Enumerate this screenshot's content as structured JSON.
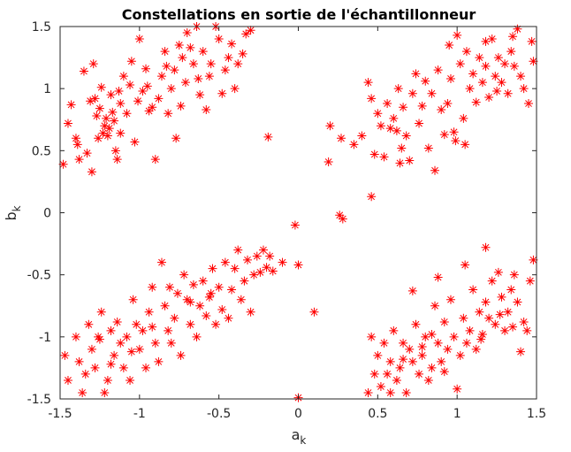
{
  "chart_data": {
    "type": "scatter",
    "title": "Constellations en sortie de l'échantillonneur",
    "xlabel": {
      "base": "a",
      "sub": "k"
    },
    "ylabel": {
      "base": "b",
      "sub": "k"
    },
    "xlim": [
      -1.5,
      1.5
    ],
    "ylim": [
      -1.5,
      1.5
    ],
    "xticks": [
      -1.5,
      -1,
      -0.5,
      0,
      0.5,
      1,
      1.5
    ],
    "xtick_labels": [
      "-1.5",
      "-1",
      "-0.5",
      "0",
      "0.5",
      "1",
      "1.5"
    ],
    "yticks": [
      -1.5,
      -1,
      -0.5,
      0,
      0.5,
      1,
      1.5
    ],
    "ytick_labels": [
      "-1.5",
      "-1",
      "-0.5",
      "0",
      "0.5",
      "1",
      "1.5"
    ],
    "grid": false,
    "marker": "asterisk",
    "marker_color": "#ff0000",
    "points": [
      [
        -1.48,
        0.39
      ],
      [
        -1.45,
        0.72
      ],
      [
        -1.43,
        0.87
      ],
      [
        -1.4,
        0.6
      ],
      [
        -1.39,
        0.55
      ],
      [
        -1.38,
        0.43
      ],
      [
        -1.35,
        1.14
      ],
      [
        -1.33,
        0.48
      ],
      [
        -1.31,
        0.9
      ],
      [
        -1.3,
        0.33
      ],
      [
        -1.29,
        1.2
      ],
      [
        -1.28,
        0.92
      ],
      [
        -1.27,
        0.78
      ],
      [
        -1.26,
        0.6
      ],
      [
        -1.25,
        0.84
      ],
      [
        -1.24,
        1.01
      ],
      [
        -1.23,
        0.64
      ],
      [
        -1.22,
        0.7
      ],
      [
        -1.21,
        0.76
      ],
      [
        -1.2,
        0.62
      ],
      [
        -1.19,
        0.68
      ],
      [
        -1.18,
        0.95
      ],
      [
        -1.17,
        0.81
      ],
      [
        -1.16,
        0.74
      ],
      [
        -1.15,
        0.5
      ],
      [
        -1.14,
        0.43
      ],
      [
        -1.13,
        0.98
      ],
      [
        -1.12,
        0.64
      ],
      [
        -1.1,
        1.1
      ],
      [
        -1.08,
        0.8
      ],
      [
        -1.06,
        1.03
      ],
      [
        -1.05,
        1.22
      ],
      [
        -1.03,
        0.57
      ],
      [
        -1.01,
        0.9
      ],
      [
        -1.0,
        1.4
      ],
      [
        -0.98,
        0.98
      ],
      [
        -0.96,
        1.16
      ],
      [
        -0.94,
        0.82
      ],
      [
        -0.92,
        0.85
      ],
      [
        -0.9,
        0.43
      ],
      [
        -0.88,
        0.92
      ],
      [
        -0.86,
        1.1
      ],
      [
        -0.84,
        1.3
      ],
      [
        -0.82,
        0.8
      ],
      [
        -0.8,
        1.0
      ],
      [
        -0.78,
        1.15
      ],
      [
        -0.77,
        0.6
      ],
      [
        -0.75,
        1.35
      ],
      [
        -0.73,
        1.25
      ],
      [
        -0.71,
        1.05
      ],
      [
        -0.7,
        1.45
      ],
      [
        -0.68,
        1.33
      ],
      [
        -0.66,
        1.2
      ],
      [
        -0.64,
        1.5
      ],
      [
        -0.62,
        0.95
      ],
      [
        -0.6,
        1.3
      ],
      [
        -0.58,
        0.83
      ],
      [
        -0.56,
        1.1
      ],
      [
        -0.55,
        1.2
      ],
      [
        -0.52,
        1.5
      ],
      [
        -0.5,
        1.4
      ],
      [
        -0.48,
        0.96
      ],
      [
        -0.46,
        1.15
      ],
      [
        -0.44,
        1.25
      ],
      [
        -0.42,
        1.36
      ],
      [
        -0.4,
        1.0
      ],
      [
        -0.38,
        1.2
      ],
      [
        -0.35,
        1.28
      ],
      [
        -0.33,
        1.44
      ],
      [
        -0.3,
        1.47
      ],
      [
        -1.12,
        0.88
      ],
      [
        -0.95,
        1.02
      ],
      [
        -0.83,
        1.18
      ],
      [
        -0.74,
        0.86
      ],
      [
        -0.63,
        1.08
      ],
      [
        0.2,
        0.7
      ],
      [
        0.27,
        0.6
      ],
      [
        0.35,
        0.55
      ],
      [
        0.4,
        0.62
      ],
      [
        0.44,
        1.05
      ],
      [
        0.46,
        0.92
      ],
      [
        0.48,
        0.47
      ],
      [
        0.5,
        0.8
      ],
      [
        0.52,
        0.7
      ],
      [
        0.54,
        0.45
      ],
      [
        0.56,
        0.88
      ],
      [
        0.58,
        0.68
      ],
      [
        0.6,
        0.76
      ],
      [
        0.62,
        0.66
      ],
      [
        0.63,
        1.0
      ],
      [
        0.64,
        0.4
      ],
      [
        0.65,
        0.52
      ],
      [
        0.66,
        0.85
      ],
      [
        0.68,
        0.62
      ],
      [
        0.7,
        0.42
      ],
      [
        0.72,
        0.96
      ],
      [
        0.74,
        1.12
      ],
      [
        0.76,
        0.72
      ],
      [
        0.78,
        0.86
      ],
      [
        0.8,
        1.06
      ],
      [
        0.82,
        0.52
      ],
      [
        0.84,
        0.96
      ],
      [
        0.86,
        0.34
      ],
      [
        0.88,
        1.15
      ],
      [
        0.9,
        0.83
      ],
      [
        0.92,
        0.63
      ],
      [
        0.94,
        0.88
      ],
      [
        0.96,
        1.08
      ],
      [
        0.98,
        0.65
      ],
      [
        1.0,
        1.43
      ],
      [
        1.02,
        1.2
      ],
      [
        1.04,
        0.76
      ],
      [
        1.06,
        1.3
      ],
      [
        1.08,
        1.0
      ],
      [
        1.1,
        1.12
      ],
      [
        1.12,
        0.89
      ],
      [
        1.14,
        1.25
      ],
      [
        1.16,
        1.05
      ],
      [
        1.18,
        1.18
      ],
      [
        1.2,
        0.93
      ],
      [
        1.22,
        1.4
      ],
      [
        1.24,
        1.1
      ],
      [
        1.26,
        1.25
      ],
      [
        1.28,
        1.05
      ],
      [
        1.3,
        1.2
      ],
      [
        1.32,
        0.96
      ],
      [
        1.34,
        1.3
      ],
      [
        1.36,
        1.18
      ],
      [
        1.38,
        1.48
      ],
      [
        1.4,
        1.1
      ],
      [
        1.42,
        1.0
      ],
      [
        1.45,
        0.88
      ],
      [
        1.47,
        1.38
      ],
      [
        1.48,
        1.22
      ],
      [
        0.99,
        0.58
      ],
      [
        1.05,
        0.55
      ],
      [
        1.25,
        0.98
      ],
      [
        1.18,
        1.38
      ],
      [
        0.95,
        1.35
      ],
      [
        1.35,
        1.42
      ],
      [
        -1.47,
        -1.15
      ],
      [
        -1.45,
        -1.35
      ],
      [
        -1.4,
        -1.0
      ],
      [
        -1.38,
        -1.2
      ],
      [
        -1.36,
        -1.45
      ],
      [
        -1.34,
        -1.3
      ],
      [
        -1.32,
        -0.9
      ],
      [
        -1.3,
        -1.1
      ],
      [
        -1.28,
        -1.25
      ],
      [
        -1.26,
        -1.0
      ],
      [
        -1.24,
        -0.8
      ],
      [
        -1.22,
        -1.45
      ],
      [
        -1.2,
        -1.35
      ],
      [
        -1.18,
        -0.95
      ],
      [
        -1.16,
        -1.15
      ],
      [
        -1.14,
        -0.88
      ],
      [
        -1.12,
        -1.05
      ],
      [
        -1.1,
        -1.25
      ],
      [
        -1.08,
        -1.0
      ],
      [
        -1.06,
        -1.35
      ],
      [
        -1.04,
        -0.7
      ],
      [
        -1.02,
        -0.9
      ],
      [
        -1.0,
        -1.1
      ],
      [
        -0.98,
        -0.95
      ],
      [
        -0.96,
        -1.25
      ],
      [
        -0.94,
        -0.8
      ],
      [
        -0.92,
        -0.6
      ],
      [
        -0.9,
        -1.05
      ],
      [
        -0.88,
        -1.2
      ],
      [
        -0.86,
        -0.4
      ],
      [
        -0.84,
        -0.75
      ],
      [
        -0.82,
        -0.95
      ],
      [
        -0.8,
        -1.05
      ],
      [
        -0.78,
        -0.85
      ],
      [
        -0.76,
        -0.65
      ],
      [
        -0.74,
        -1.15
      ],
      [
        -0.72,
        -0.5
      ],
      [
        -0.7,
        -0.7
      ],
      [
        -0.68,
        -0.9
      ],
      [
        -0.66,
        -0.58
      ],
      [
        -0.64,
        -1.0
      ],
      [
        -0.62,
        -0.75
      ],
      [
        -0.6,
        -0.55
      ],
      [
        -0.58,
        -0.83
      ],
      [
        -0.56,
        -0.68
      ],
      [
        -0.54,
        -0.45
      ],
      [
        -0.52,
        -0.9
      ],
      [
        -0.5,
        -0.6
      ],
      [
        -0.48,
        -0.78
      ],
      [
        -0.46,
        -0.4
      ],
      [
        -0.44,
        -0.85
      ],
      [
        -0.42,
        -0.62
      ],
      [
        -0.4,
        -0.45
      ],
      [
        -0.38,
        -0.3
      ],
      [
        -0.36,
        -0.7
      ],
      [
        -0.34,
        -0.55
      ],
      [
        -0.32,
        -0.38
      ],
      [
        -0.3,
        -0.8
      ],
      [
        -0.28,
        -0.5
      ],
      [
        -0.26,
        -0.35
      ],
      [
        -0.24,
        -0.48
      ],
      [
        -0.22,
        -0.3
      ],
      [
        -0.2,
        -0.44
      ],
      [
        -0.18,
        -0.35
      ],
      [
        -0.16,
        -0.47
      ],
      [
        -0.1,
        -0.4
      ],
      [
        -0.02,
        -0.1
      ],
      [
        0.0,
        -0.42
      ],
      [
        -1.25,
        -1.02
      ],
      [
        -1.18,
        -1.22
      ],
      [
        -1.05,
        -1.12
      ],
      [
        -0.92,
        -0.92
      ],
      [
        -0.81,
        -0.6
      ],
      [
        -0.68,
        -0.72
      ],
      [
        -0.55,
        -0.65
      ],
      [
        0.44,
        -1.45
      ],
      [
        0.46,
        -1.0
      ],
      [
        0.48,
        -1.3
      ],
      [
        0.5,
        -1.15
      ],
      [
        0.52,
        -1.4
      ],
      [
        0.54,
        -1.05
      ],
      [
        0.56,
        -1.3
      ],
      [
        0.58,
        -1.2
      ],
      [
        0.6,
        -0.95
      ],
      [
        0.62,
        -1.35
      ],
      [
        0.64,
        -1.25
      ],
      [
        0.66,
        -1.05
      ],
      [
        0.68,
        -1.45
      ],
      [
        0.7,
        -1.1
      ],
      [
        0.72,
        -1.2
      ],
      [
        0.74,
        -0.9
      ],
      [
        0.76,
        -1.3
      ],
      [
        0.78,
        -1.15
      ],
      [
        0.8,
        -1.0
      ],
      [
        0.82,
        -1.35
      ],
      [
        0.84,
        -1.25
      ],
      [
        0.86,
        -0.75
      ],
      [
        0.88,
        -1.05
      ],
      [
        0.9,
        -1.2
      ],
      [
        0.92,
        -0.88
      ],
      [
        0.94,
        -1.1
      ],
      [
        0.96,
        -0.7
      ],
      [
        0.98,
        -1.0
      ],
      [
        1.0,
        -1.42
      ],
      [
        1.02,
        -1.15
      ],
      [
        1.04,
        -0.85
      ],
      [
        1.06,
        -1.05
      ],
      [
        1.08,
        -0.95
      ],
      [
        1.1,
        -0.62
      ],
      [
        1.12,
        -1.1
      ],
      [
        1.14,
        -0.8
      ],
      [
        1.16,
        -0.98
      ],
      [
        1.18,
        -0.72
      ],
      [
        1.2,
        -0.85
      ],
      [
        1.22,
        -0.55
      ],
      [
        1.24,
        -0.9
      ],
      [
        1.26,
        -0.48
      ],
      [
        1.28,
        -0.68
      ],
      [
        1.3,
        -0.95
      ],
      [
        1.32,
        -0.8
      ],
      [
        1.34,
        -0.62
      ],
      [
        1.36,
        -0.5
      ],
      [
        1.38,
        -0.72
      ],
      [
        1.4,
        -1.12
      ],
      [
        1.42,
        -0.88
      ],
      [
        1.44,
        -0.95
      ],
      [
        1.46,
        -0.55
      ],
      [
        1.48,
        -0.38
      ],
      [
        0.72,
        -0.63
      ],
      [
        0.88,
        -0.52
      ],
      [
        1.18,
        -0.28
      ],
      [
        1.05,
        -0.42
      ],
      [
        0.78,
        -1.08
      ],
      [
        0.92,
        -1.28
      ],
      [
        1.15,
        -1.02
      ],
      [
        1.27,
        -0.82
      ],
      [
        1.35,
        -0.92
      ],
      [
        0.66,
        -1.18
      ],
      [
        0.84,
        -0.98
      ],
      [
        0.58,
        -1.45
      ],
      [
        0.28,
        -0.05
      ],
      [
        0.1,
        -0.8
      ],
      [
        0.46,
        0.13
      ],
      [
        0.19,
        0.41
      ],
      [
        -0.19,
        0.61
      ],
      [
        0.26,
        -0.02
      ],
      [
        0.0,
        -1.49
      ]
    ]
  }
}
